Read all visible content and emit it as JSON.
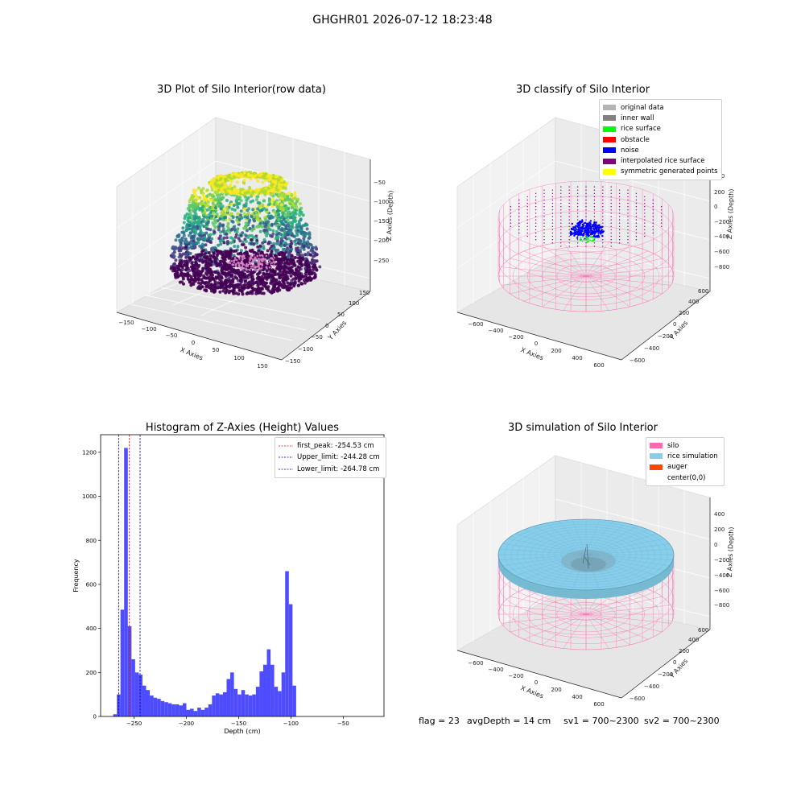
{
  "suptitle": "GHGHR01 2026-07-12 18:23:48",
  "footer": {
    "flag": "flag = 23",
    "avg_depth": "avgDepth = 14 cm",
    "sv1": "sv1 = 700~2300",
    "sv2": "sv2 = 700~2300"
  },
  "chart_data": [
    {
      "type": "scatter3d",
      "title": "3D Plot of Silo Interior(row data)",
      "xlabel": "X Axies",
      "ylabel": "Y Axies",
      "zlabel": "Z Axies (Depth)",
      "x_ticks": [
        "−150",
        "−100",
        "−50",
        "0",
        "50",
        "100",
        "150"
      ],
      "y_ticks": [
        "−150",
        "−100",
        "−50",
        "0",
        "50",
        "100",
        "150"
      ],
      "z_ticks": [
        "−50",
        "−100",
        "−150",
        "−200",
        "−250"
      ],
      "colormap": "viridis"
    },
    {
      "type": "scatter3d",
      "title": "3D classify of Silo Interior",
      "xlabel": "X Axies",
      "ylabel": "Y Axies",
      "zlabel": "Z Axies (Depth)",
      "x_ticks": [
        "−600",
        "−400",
        "−200",
        "0",
        "200",
        "400",
        "600"
      ],
      "y_ticks": [
        "−600",
        "−400",
        "−200",
        "0",
        "200",
        "400",
        "600"
      ],
      "z_ticks": [
        "200",
        "0",
        "−200",
        "−400",
        "−600",
        "−800"
      ],
      "z_top_partial": "200",
      "legend": [
        {
          "label": "original data",
          "color": "#b3b3b3"
        },
        {
          "label": "inner wall",
          "color": "#808080"
        },
        {
          "label": "rice surface",
          "color": "#00ff00"
        },
        {
          "label": "obstacle",
          "color": "#ff0000"
        },
        {
          "label": "noise",
          "color": "#0000ff"
        },
        {
          "label": "interpolated rice surface",
          "color": "#800080"
        },
        {
          "label": "symmetric generated points",
          "color": "#ffff00"
        }
      ]
    },
    {
      "type": "bar",
      "title": "Histogram of Z-Axies (Height) Values",
      "xlabel": "Depth (cm)",
      "ylabel": "Frequency",
      "xlim": [
        -282,
        -11
      ],
      "ylim": [
        0,
        1280
      ],
      "x_ticks": [
        -250,
        -200,
        -150,
        -100,
        -50
      ],
      "x_tick_labels": [
        "−250",
        "−200",
        "−150",
        "−100",
        "−50"
      ],
      "y_ticks": [
        0,
        200,
        400,
        600,
        800,
        1000,
        1200
      ],
      "bin_start": -270,
      "bin_width": 3.5,
      "values": [
        10,
        100,
        485,
        1220,
        410,
        260,
        200,
        190,
        140,
        120,
        95,
        85,
        80,
        70,
        65,
        60,
        55,
        55,
        50,
        60,
        30,
        35,
        25,
        40,
        30,
        40,
        55,
        95,
        105,
        100,
        110,
        170,
        200,
        125,
        100,
        120,
        100,
        95,
        100,
        135,
        205,
        235,
        305,
        235,
        135,
        115,
        200,
        660,
        510,
        140
      ],
      "bar_color": "#4d4dff",
      "vlines": [
        {
          "name": "first_peak",
          "label": "first_peak: -254.53 cm",
          "x": -254.53,
          "color": "#ff0000"
        },
        {
          "name": "upper_limit",
          "label": "Upper_limit: -244.28 cm",
          "x": -244.28,
          "color": "#0000aa"
        },
        {
          "name": "lower_limit",
          "label": "Lower_limit: -264.78 cm",
          "x": -264.78,
          "color": "#0000aa"
        }
      ]
    },
    {
      "type": "surface3d",
      "title": "3D simulation of Silo Interior",
      "xlabel": "X Axies",
      "ylabel": "Y Axies",
      "zlabel": "Z Axies (Depth)",
      "x_ticks": [
        "−600",
        "−400",
        "−200",
        "0",
        "200",
        "400",
        "600"
      ],
      "y_ticks": [
        "−600",
        "−400",
        "−200",
        "0",
        "200",
        "400",
        "600"
      ],
      "z_ticks": [
        "400",
        "200",
        "0",
        "−200",
        "−400",
        "−600",
        "−800"
      ],
      "legend": [
        {
          "label": "silo",
          "color": "#ff69b4"
        },
        {
          "label": "rice simulation",
          "color": "#87ceeb"
        },
        {
          "label": "auger",
          "color": "#ff4500"
        },
        {
          "label": "center(0,0)",
          "color": "none"
        }
      ]
    }
  ]
}
